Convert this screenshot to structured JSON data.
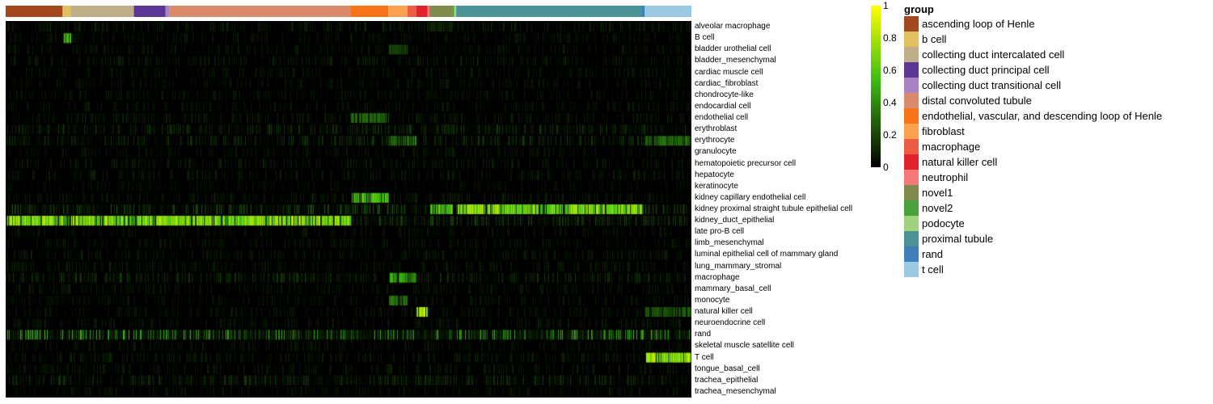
{
  "chart_data": {
    "type": "heatmap",
    "title": "",
    "color_scale": {
      "min": 0,
      "max": 1,
      "low_color": "#000000",
      "mid_color": "#3fbf12",
      "high_color": "#ffff00",
      "ticks": [
        "0",
        "0.2",
        "0.4",
        "0.6",
        "0.8",
        "1"
      ]
    },
    "legend": {
      "title": "group",
      "placement": "top-right",
      "items": [
        {
          "label": "ascending loop of Henle",
          "color": "#a3471f"
        },
        {
          "label": "b cell",
          "color": "#e0c060"
        },
        {
          "label": "collecting duct intercalated cell",
          "color": "#bfae88"
        },
        {
          "label": "collecting duct principal cell",
          "color": "#5d3594"
        },
        {
          "label": "collecting duct transitional cell",
          "color": "#a884c4"
        },
        {
          "label": "distal convoluted tubule",
          "color": "#d98a6a"
        },
        {
          "label": "endothelial, vascular, and descending loop of Henle",
          "color": "#f8741a"
        },
        {
          "label": "fibroblast",
          "color": "#fba04e"
        },
        {
          "label": "macrophage",
          "color": "#ec5c42"
        },
        {
          "label": "natural killer cell",
          "color": "#e0222e"
        },
        {
          "label": "neutrophil",
          "color": "#f47878"
        },
        {
          "label": "novel1",
          "color": "#7e8b4c"
        },
        {
          "label": "novel2",
          "color": "#4aa13a"
        },
        {
          "label": "podocyte",
          "color": "#a2d27e"
        },
        {
          "label": "proximal tubule",
          "color": "#4b9296"
        },
        {
          "label": "rand",
          "color": "#3f7fba"
        },
        {
          "label": "t cell",
          "color": "#9bc8e2"
        }
      ]
    },
    "column_groups": [
      {
        "group": "ascending loop of Henle",
        "fraction": 0.083
      },
      {
        "group": "b cell",
        "fraction": 0.012
      },
      {
        "group": "collecting duct intercalated cell",
        "fraction": 0.092
      },
      {
        "group": "collecting duct principal cell",
        "fraction": 0.046
      },
      {
        "group": "collecting duct transitional cell",
        "fraction": 0.006
      },
      {
        "group": "distal convoluted tubule",
        "fraction": 0.264
      },
      {
        "group": "endothelial, vascular, and descending loop of Henle",
        "fraction": 0.055
      },
      {
        "group": "fibroblast",
        "fraction": 0.028
      },
      {
        "group": "macrophage",
        "fraction": 0.013
      },
      {
        "group": "natural killer cell",
        "fraction": 0.016
      },
      {
        "group": "neutrophil",
        "fraction": 0.003
      },
      {
        "group": "novel1",
        "fraction": 0.034
      },
      {
        "group": "novel2",
        "fraction": 0.002
      },
      {
        "group": "podocyte",
        "fraction": 0.003
      },
      {
        "group": "proximal tubule",
        "fraction": 0.27
      },
      {
        "group": "rand",
        "fraction": 0.005
      },
      {
        "group": "t cell",
        "fraction": 0.068
      }
    ],
    "rows": [
      {
        "label": "alveolar macrophage",
        "base": 0.06,
        "hot": [
          [
            "novel1",
            0.12
          ]
        ]
      },
      {
        "label": "B cell",
        "base": 0.04,
        "hot": [
          [
            "b cell",
            0.55
          ]
        ]
      },
      {
        "label": "bladder urothelial cell",
        "base": 0.04,
        "hot": [
          [
            "fibroblast",
            0.2
          ]
        ]
      },
      {
        "label": "bladder_mesenchymal",
        "base": 0.05,
        "hot": []
      },
      {
        "label": "cardiac muscle cell",
        "base": 0.04,
        "hot": []
      },
      {
        "label": "cardiac_fibroblast",
        "base": 0.04,
        "hot": []
      },
      {
        "label": "chondrocyte-like",
        "base": 0.04,
        "hot": []
      },
      {
        "label": "endocardial cell",
        "base": 0.04,
        "hot": []
      },
      {
        "label": "endothelial cell",
        "base": 0.05,
        "hot": [
          [
            "endothelial, vascular, and descending loop of Henle",
            0.3
          ]
        ]
      },
      {
        "label": "erythroblast",
        "base": 0.08,
        "hot": []
      },
      {
        "label": "erythrocyte",
        "base": 0.08,
        "hot": [
          [
            "fibroblast",
            0.3
          ],
          [
            "macrophage",
            0.35
          ],
          [
            "t cell",
            0.3
          ]
        ]
      },
      {
        "label": "granulocyte",
        "base": 0.04,
        "hot": []
      },
      {
        "label": "hematopoietic precursor cell",
        "base": 0.05,
        "hot": []
      },
      {
        "label": "hepatocyte",
        "base": 0.05,
        "hot": []
      },
      {
        "label": "keratinocyte",
        "base": 0.03,
        "hot": []
      },
      {
        "label": "kidney capillary endothelial cell",
        "base": 0.05,
        "hot": [
          [
            "endothelial, vascular, and descending loop of Henle",
            0.55
          ]
        ]
      },
      {
        "label": "kidney proximal straight tubule epithelial cell",
        "base": 0.12,
        "hot": [
          [
            "proximal tubule",
            0.72
          ],
          [
            "novel1",
            0.6
          ]
        ]
      },
      {
        "label": "kidney_duct_epithelial",
        "base": 0.1,
        "hot": [
          [
            "ascending loop of Henle",
            0.75
          ],
          [
            "b cell",
            0.5
          ],
          [
            "collecting duct intercalated cell",
            0.72
          ],
          [
            "collecting duct principal cell",
            0.72
          ],
          [
            "collecting duct transitional cell",
            0.6
          ],
          [
            "distal convoluted tubule",
            0.72
          ]
        ]
      },
      {
        "label": "late pro-B cell",
        "base": 0.04,
        "hot": []
      },
      {
        "label": "limb_mesenchymal",
        "base": 0.04,
        "hot": []
      },
      {
        "label": "luminal epithelial cell of mammary gland",
        "base": 0.05,
        "hot": []
      },
      {
        "label": "lung_mammary_stromal",
        "base": 0.05,
        "hot": []
      },
      {
        "label": "macrophage",
        "base": 0.08,
        "hot": [
          [
            "fibroblast",
            0.45
          ],
          [
            "macrophage",
            0.35
          ]
        ]
      },
      {
        "label": "mammary_basal_cell",
        "base": 0.04,
        "hot": []
      },
      {
        "label": "monocyte",
        "base": 0.04,
        "hot": [
          [
            "fibroblast",
            0.3
          ]
        ]
      },
      {
        "label": "natural killer cell",
        "base": 0.04,
        "hot": [
          [
            "natural killer cell",
            0.8
          ],
          [
            "t cell",
            0.25
          ]
        ]
      },
      {
        "label": "neuroendocrine cell",
        "base": 0.05,
        "hot": []
      },
      {
        "label": "rand",
        "base": 0.25,
        "hot": []
      },
      {
        "label": "skeletal muscle satellite cell",
        "base": 0.04,
        "hot": []
      },
      {
        "label": "T cell",
        "base": 0.05,
        "hot": [
          [
            "t cell",
            0.78
          ]
        ]
      },
      {
        "label": "tongue_basal_cell",
        "base": 0.05,
        "hot": []
      },
      {
        "label": "trachea_epithelial",
        "base": 0.08,
        "hot": []
      },
      {
        "label": "trachea_mesenchymal",
        "base": 0.04,
        "hot": []
      }
    ]
  }
}
